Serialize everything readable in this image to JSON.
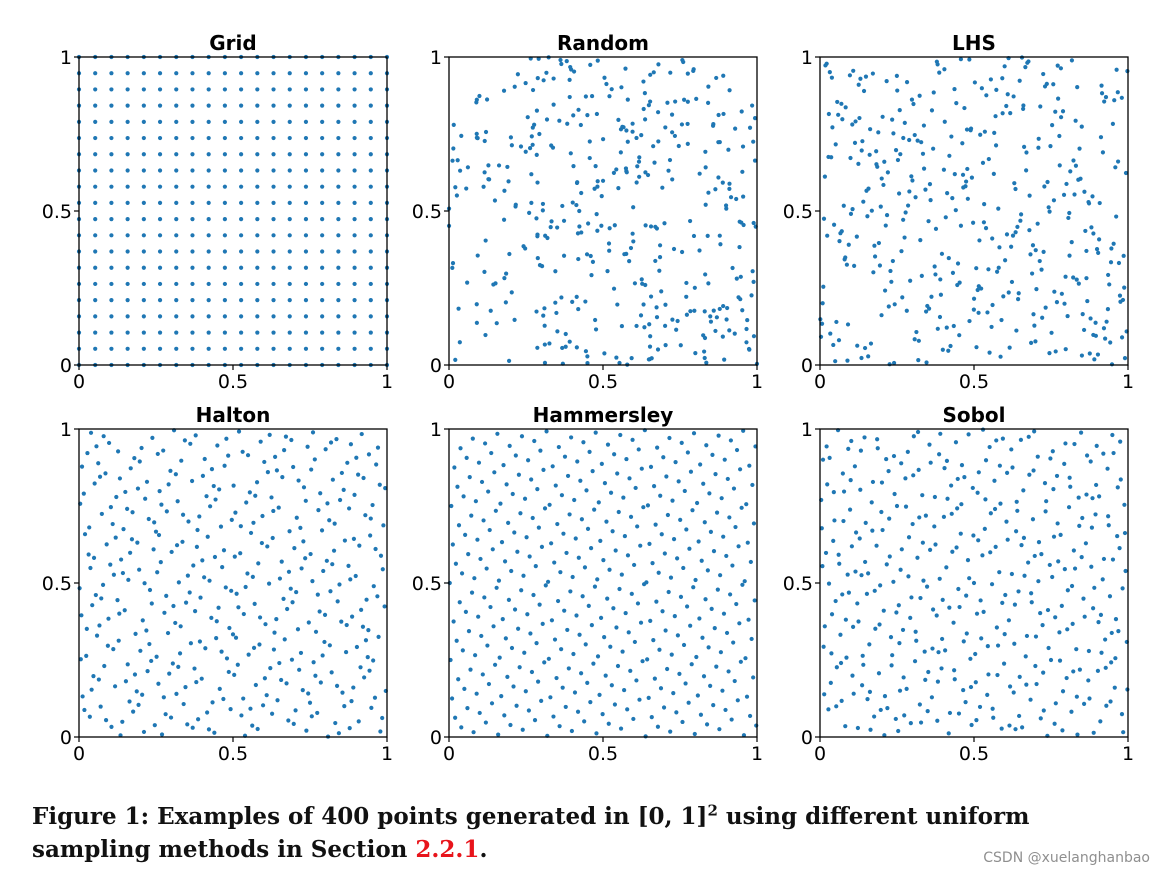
{
  "chart_data": [
    {
      "type": "scatter",
      "title": "Grid",
      "method": "grid",
      "n": 400,
      "xlim": [
        0,
        1
      ],
      "ylim": [
        0,
        1
      ],
      "xticks": [
        "0",
        "0.5",
        "1"
      ],
      "yticks": [
        "0",
        "0.5",
        "1"
      ],
      "grid": false,
      "marker_color": "#1f77b4"
    },
    {
      "type": "scatter",
      "title": "Random",
      "method": "random",
      "n": 400,
      "xlim": [
        0,
        1
      ],
      "ylim": [
        0,
        1
      ],
      "xticks": [
        "0",
        "0.5",
        "1"
      ],
      "yticks": [
        "0",
        "0.5",
        "1"
      ],
      "grid": false,
      "marker_color": "#1f77b4"
    },
    {
      "type": "scatter",
      "title": "LHS",
      "method": "lhs",
      "n": 400,
      "xlim": [
        0,
        1
      ],
      "ylim": [
        0,
        1
      ],
      "xticks": [
        "0",
        "0.5",
        "1"
      ],
      "yticks": [
        "0",
        "0.5",
        "1"
      ],
      "grid": false,
      "marker_color": "#1f77b4"
    },
    {
      "type": "scatter",
      "title": "Halton",
      "method": "halton",
      "n": 400,
      "xlim": [
        0,
        1
      ],
      "ylim": [
        0,
        1
      ],
      "xticks": [
        "0",
        "0.5",
        "1"
      ],
      "yticks": [
        "0",
        "0.5",
        "1"
      ],
      "grid": false,
      "marker_color": "#1f77b4"
    },
    {
      "type": "scatter",
      "title": "Hammersley",
      "method": "hammersley",
      "n": 400,
      "xlim": [
        0,
        1
      ],
      "ylim": [
        0,
        1
      ],
      "xticks": [
        "0",
        "0.5",
        "1"
      ],
      "yticks": [
        "0",
        "0.5",
        "1"
      ],
      "grid": false,
      "marker_color": "#1f77b4"
    },
    {
      "type": "scatter",
      "title": "Sobol",
      "method": "sobol",
      "n": 400,
      "xlim": [
        0,
        1
      ],
      "ylim": [
        0,
        1
      ],
      "xticks": [
        "0",
        "0.5",
        "1"
      ],
      "yticks": [
        "0",
        "0.5",
        "1"
      ],
      "grid": false,
      "marker_color": "#1f77b4"
    }
  ],
  "caption": {
    "prefix": "Figure 1: Examples of 400 points generated in [0, 1]",
    "superscript": "2",
    "middle": " using different uniform sampling methods in Section ",
    "ref": "2.2.1",
    "suffix": "."
  },
  "watermark": "CSDN @xuelanghanbao"
}
